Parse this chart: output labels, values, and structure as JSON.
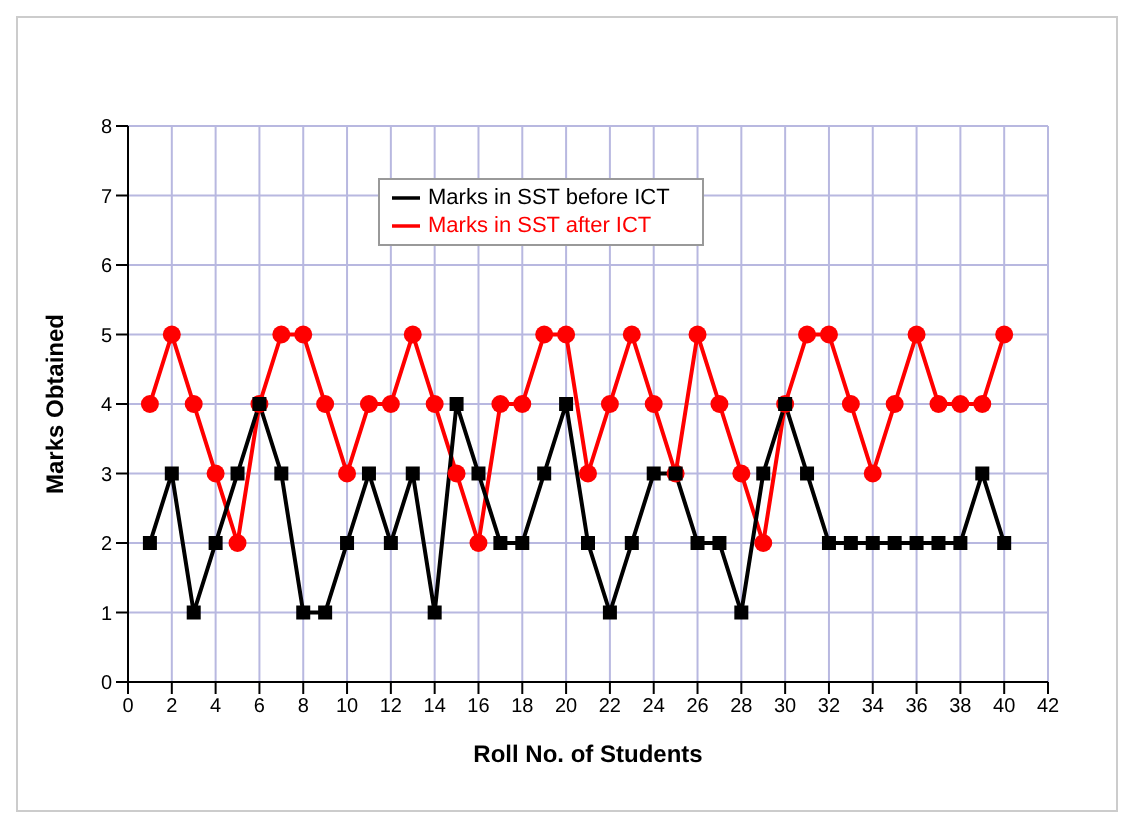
{
  "chart_data": {
    "type": "line",
    "xlabel": "Roll No. of Students",
    "ylabel": "Marks Obtained",
    "x": [
      1,
      2,
      3,
      4,
      5,
      6,
      7,
      8,
      9,
      10,
      11,
      12,
      13,
      14,
      15,
      16,
      17,
      18,
      19,
      20,
      21,
      22,
      23,
      24,
      25,
      26,
      27,
      28,
      29,
      30,
      31,
      32,
      33,
      34,
      35,
      36,
      37,
      38,
      39,
      40
    ],
    "series": [
      {
        "name": "Marks in SST before ICT",
        "color": "#000000",
        "marker": "square",
        "values": [
          2,
          3,
          1,
          2,
          3,
          4,
          3,
          1,
          1,
          2,
          3,
          2,
          3,
          1,
          4,
          3,
          2,
          2,
          3,
          4,
          2,
          1,
          2,
          3,
          3,
          2,
          2,
          1,
          3,
          4,
          3,
          2,
          2,
          2,
          2,
          2,
          2,
          2,
          3,
          2
        ]
      },
      {
        "name": "Marks in SST after ICT",
        "color": "#ff0000",
        "marker": "circle",
        "values": [
          4,
          5,
          4,
          3,
          2,
          4,
          5,
          5,
          4,
          3,
          4,
          4,
          5,
          4,
          3,
          2,
          4,
          4,
          5,
          5,
          3,
          4,
          5,
          4,
          3,
          5,
          4,
          3,
          2,
          4,
          5,
          5,
          4,
          3,
          4,
          5,
          4,
          4,
          4,
          5
        ]
      }
    ],
    "xlim": [
      0,
      42
    ],
    "xticks": [
      0,
      2,
      4,
      6,
      8,
      10,
      12,
      14,
      16,
      18,
      20,
      22,
      24,
      26,
      28,
      30,
      32,
      34,
      36,
      38,
      40,
      42
    ],
    "ylim": [
      0,
      8
    ],
    "yticks": [
      0,
      1,
      2,
      3,
      4,
      5,
      6,
      7,
      8
    ],
    "grid": true,
    "legend": "top",
    "line_style": "solid"
  }
}
